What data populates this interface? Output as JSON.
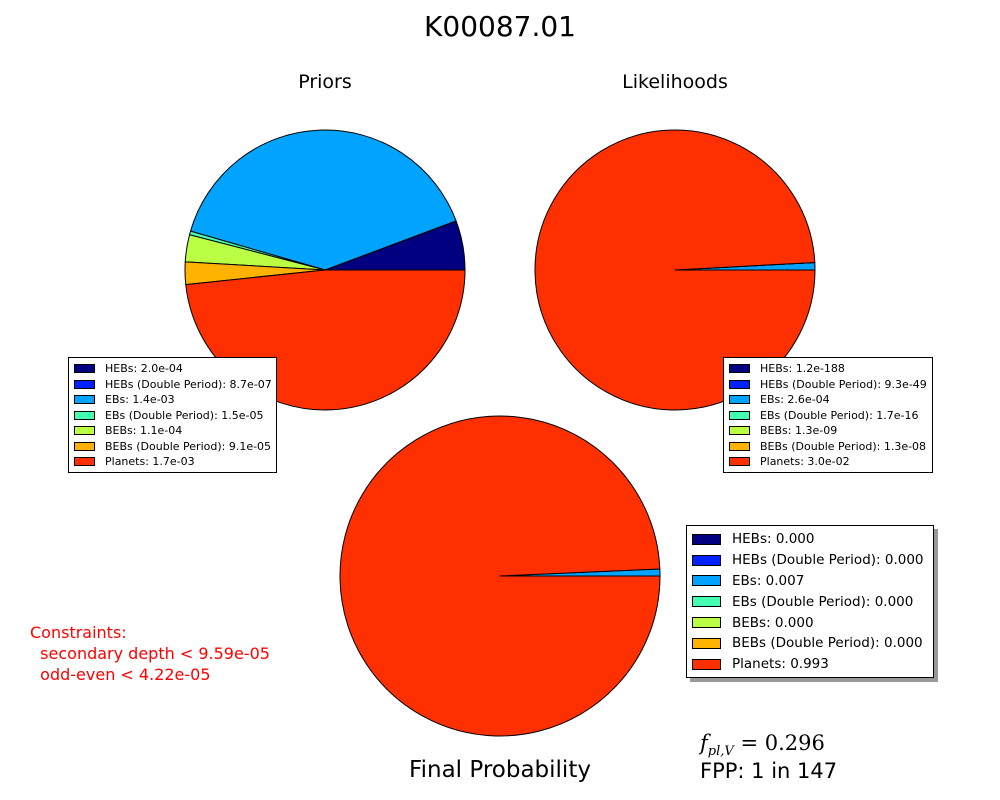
{
  "title": "K00087.01",
  "colors": {
    "HEBs": "#000080",
    "HEBs (Double Period)": "#0022ff",
    "EBs": "#00a4ff",
    "EBs (Double Period)": "#44ffb2",
    "BEBs": "#bbff44",
    "BEBs (Double Period)": "#ffb200",
    "Planets": "#ff3000"
  },
  "chart_data": [
    {
      "type": "pie",
      "title": "Priors",
      "labels": [
        "HEBs",
        "HEBs (Double Period)",
        "EBs",
        "EBs (Double Period)",
        "BEBs",
        "BEBs (Double Period)",
        "Planets"
      ],
      "values": [
        0.0002,
        8.7e-07,
        0.0014,
        1.5e-05,
        0.00011,
        9.1e-05,
        0.0017
      ],
      "legend": [
        "HEBs: 2.0e-04",
        "HEBs (Double Period): 8.7e-07",
        "EBs: 1.4e-03",
        "EBs (Double Period): 1.5e-05",
        "BEBs: 1.1e-04",
        "BEBs (Double Period): 9.1e-05",
        "Planets: 1.7e-03"
      ],
      "legend_placement": "lower-left"
    },
    {
      "type": "pie",
      "title": "Likelihoods",
      "labels": [
        "HEBs",
        "HEBs (Double Period)",
        "EBs",
        "EBs (Double Period)",
        "BEBs",
        "BEBs (Double Period)",
        "Planets"
      ],
      "values": [
        1.2e-188,
        9.3e-49,
        0.00026,
        1.7e-16,
        1.3e-09,
        1.3e-08,
        0.03
      ],
      "legend": [
        "HEBs: 1.2e-188",
        "HEBs (Double Period): 9.3e-49",
        "EBs: 2.6e-04",
        "EBs (Double Period): 1.7e-16",
        "BEBs: 1.3e-09",
        "BEBs (Double Period): 1.3e-08",
        "Planets: 3.0e-02"
      ],
      "legend_placement": "lower-right"
    },
    {
      "type": "pie",
      "title": "Final Probability",
      "labels": [
        "HEBs",
        "HEBs (Double Period)",
        "EBs",
        "EBs (Double Period)",
        "BEBs",
        "BEBs (Double Period)",
        "Planets"
      ],
      "values": [
        0.0,
        0.0,
        0.007,
        0.0,
        0.0,
        0.0,
        0.993
      ],
      "legend": [
        "HEBs: 0.000",
        "HEBs (Double Period): 0.000",
        "EBs: 0.007",
        "EBs (Double Period): 0.000",
        "BEBs: 0.000",
        "BEBs (Double Period): 0.000",
        "Planets: 0.993"
      ],
      "legend_placement": "right"
    }
  ],
  "constraints": {
    "heading": "Constraints:",
    "items": [
      "secondary depth < 9.59e-05",
      "odd-even < 4.22e-05"
    ]
  },
  "fpl_text": "f_{pl,V} = 0.296",
  "fpp_text": "FPP: 1 in 147"
}
